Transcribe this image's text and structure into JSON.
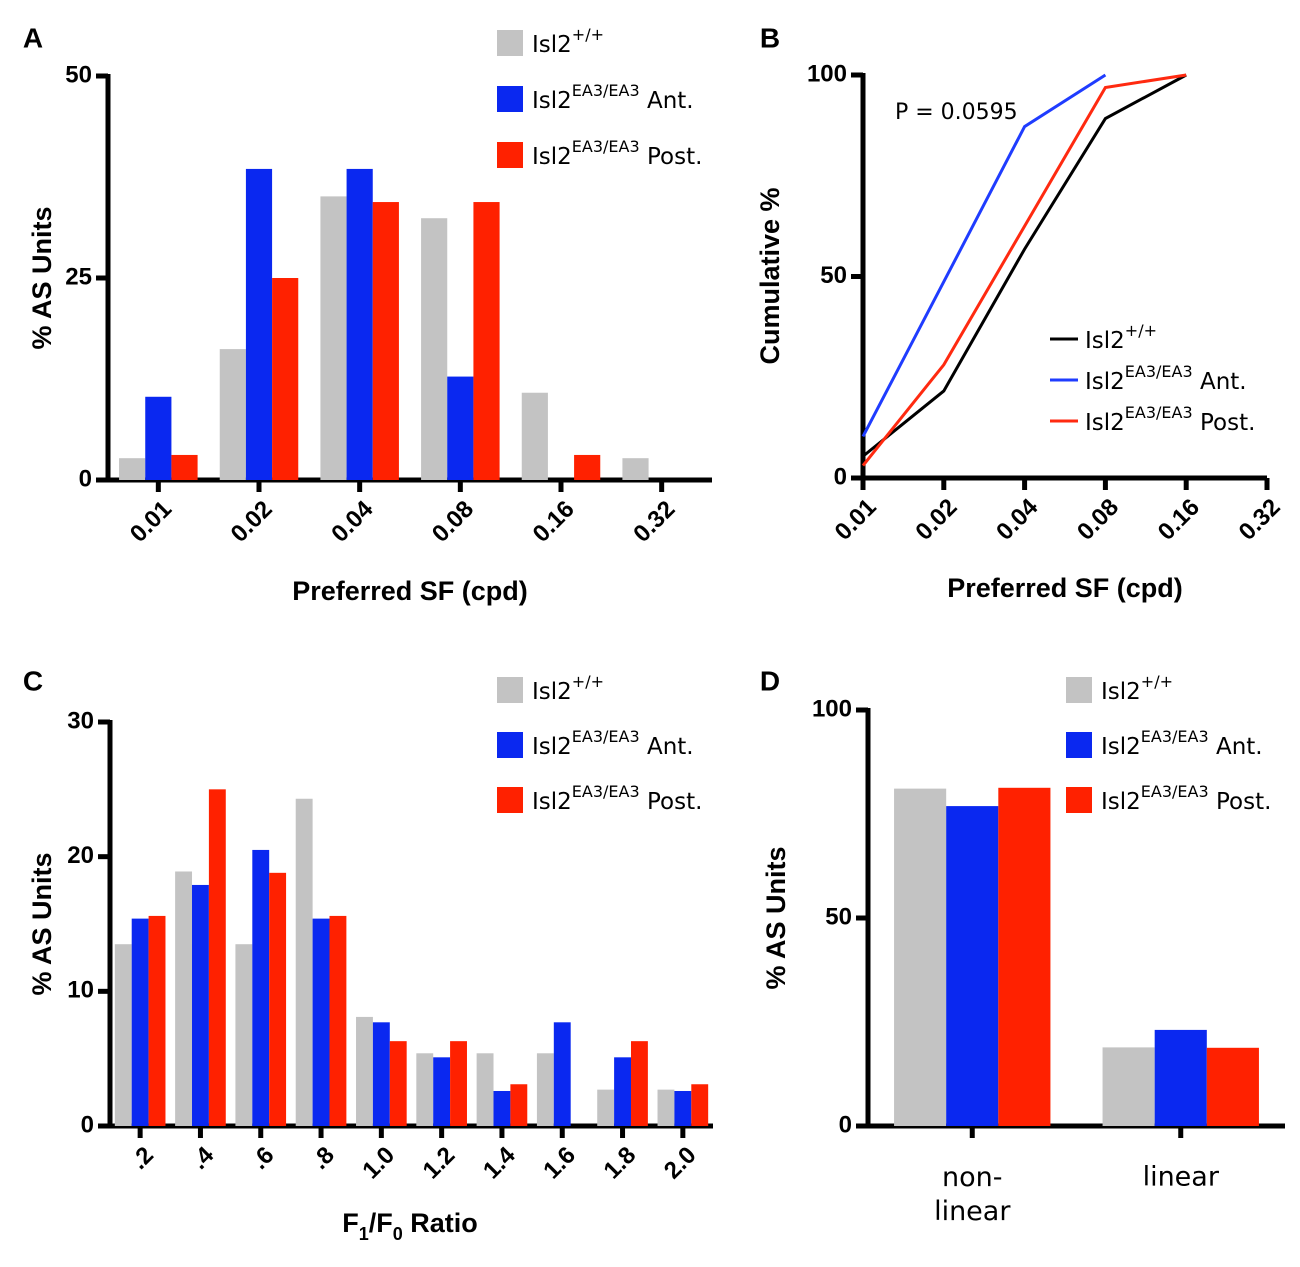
{
  "chart_data": [
    {
      "panel": "A",
      "type": "bar",
      "xlabel": "Preferred SF (cpd)",
      "ylabel": "% AS Units",
      "categories": [
        "0.01",
        "0.02",
        "0.04",
        "0.08",
        "0.16",
        "0.32"
      ],
      "series": [
        {
          "name": "Isl2+/+",
          "color": "#c3c3c3",
          "values": [
            2.7,
            16.2,
            35.1,
            32.4,
            10.8,
            2.7
          ]
        },
        {
          "name": "Isl2EA3/EA3 Ant.",
          "color": "#0a28f0",
          "values": [
            10.3,
            38.5,
            38.5,
            12.8,
            0,
            0
          ]
        },
        {
          "name": "Isl2EA3/EA3 Post.",
          "color": "#ff2100",
          "values": [
            3.1,
            25,
            34.4,
            34.4,
            3.1,
            0
          ]
        }
      ],
      "ylim": [
        0,
        50
      ],
      "yticks": [
        0,
        25,
        50
      ],
      "legend": "upper right"
    },
    {
      "panel": "B",
      "type": "line",
      "xlabel": "Preferred SF (cpd)",
      "ylabel": "Cumulative %",
      "annotation": "P = 0.0595",
      "x": [
        0.01,
        0.02,
        0.04,
        0.08,
        0.16
      ],
      "series": [
        {
          "name": "Isl2+/+",
          "color": "#000000",
          "values": [
            5.4,
            21.6,
            56.8,
            89.2,
            100
          ]
        },
        {
          "name": "Isl2EA3/EA3 Ant.",
          "color": "#1f3cff",
          "values": [
            10.3,
            48.7,
            87.2,
            100,
            null
          ]
        },
        {
          "name": "Isl2EA3/EA3 Post.",
          "color": "#ff2a10",
          "values": [
            3.1,
            28.1,
            62.5,
            96.9,
            100
          ]
        }
      ],
      "xscale": "log",
      "xlim": [
        0.01,
        0.32
      ],
      "xticks": [
        0.01,
        0.02,
        0.04,
        0.08,
        0.16,
        0.32
      ],
      "ylim": [
        0,
        100
      ],
      "yticks": [
        0,
        50,
        100
      ],
      "legend": "lower right"
    },
    {
      "panel": "C",
      "type": "bar",
      "xlabel": "F1/F0 Ratio",
      "ylabel": "% AS Units",
      "categories": [
        ".2",
        ".4",
        ".6",
        ".8",
        "1.0",
        "1.2",
        "1.4",
        "1.6",
        "1.8",
        "2.0"
      ],
      "series": [
        {
          "name": "Isl2+/+",
          "color": "#c3c3c3",
          "values": [
            13.5,
            18.9,
            13.5,
            24.3,
            8.1,
            5.4,
            5.4,
            5.4,
            2.7,
            2.7
          ]
        },
        {
          "name": "Isl2EA3/EA3 Ant.",
          "color": "#0a28f0",
          "values": [
            15.4,
            17.9,
            20.5,
            15.4,
            7.7,
            5.1,
            2.6,
            7.7,
            5.1,
            2.6
          ]
        },
        {
          "name": "Isl2EA3/EA3 Post.",
          "color": "#ff2100",
          "values": [
            15.6,
            25,
            18.8,
            15.6,
            6.3,
            6.3,
            3.1,
            0,
            6.3,
            3.1
          ]
        }
      ],
      "ylim": [
        0,
        30
      ],
      "yticks": [
        0,
        10,
        20,
        30
      ],
      "legend": "upper right"
    },
    {
      "panel": "D",
      "type": "bar",
      "ylabel": "% AS Units",
      "categories": [
        "non-linear",
        "linear"
      ],
      "series": [
        {
          "name": "Isl2+/+",
          "color": "#c3c3c3",
          "values": [
            81.1,
            18.9
          ]
        },
        {
          "name": "Isl2EA3/EA3 Ant.",
          "color": "#0a28f0",
          "values": [
            76.9,
            23.1
          ]
        },
        {
          "name": "Isl2EA3/EA3 Post.",
          "color": "#ff2100",
          "values": [
            81.3,
            18.8
          ]
        }
      ],
      "ylim": [
        0,
        100
      ],
      "yticks": [
        0,
        50,
        100
      ],
      "legend": "upper right"
    }
  ]
}
